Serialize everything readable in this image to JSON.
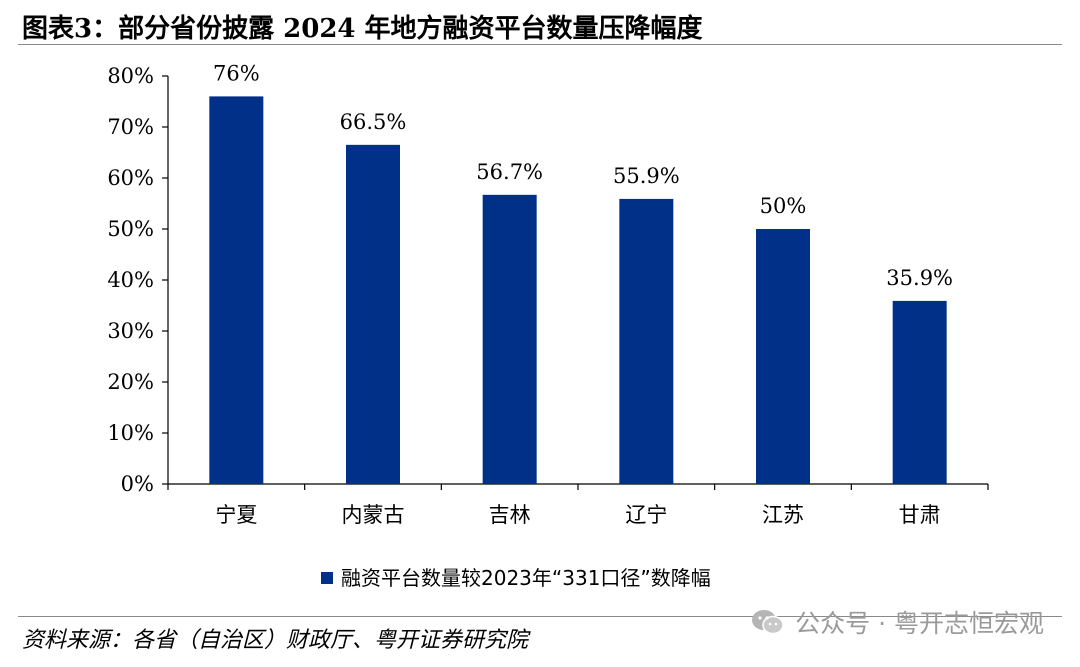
{
  "header": {
    "title": "图表3：部分省份披露 2024 年地方融资平台数量压降幅度"
  },
  "footer": {
    "source": "资料来源：各省（自治区）财政厅、粤开证券研究院",
    "watermark": "公众号 · 粤开志恒宏观"
  },
  "colors": {
    "bar": "#003087",
    "axis": "#000000"
  },
  "chart_data": {
    "type": "bar",
    "title": "",
    "xlabel": "",
    "ylabel": "",
    "ylim": [
      0,
      80
    ],
    "yticks": [
      0,
      10,
      20,
      30,
      40,
      50,
      60,
      70,
      80
    ],
    "ytick_labels": [
      "0%",
      "10%",
      "20%",
      "30%",
      "40%",
      "50%",
      "60%",
      "70%",
      "80%"
    ],
    "categories": [
      "宁夏",
      "内蒙古",
      "吉林",
      "辽宁",
      "江苏",
      "甘肃"
    ],
    "series": [
      {
        "name": "融资平台数量较2023年“331口径”数降幅",
        "values": [
          76,
          66.5,
          56.7,
          55.9,
          50,
          35.9
        ],
        "labels": [
          "76%",
          "66.5%",
          "56.7%",
          "55.9%",
          "50%",
          "35.9%"
        ]
      }
    ],
    "grid": false,
    "legend_position": "bottom-center"
  }
}
